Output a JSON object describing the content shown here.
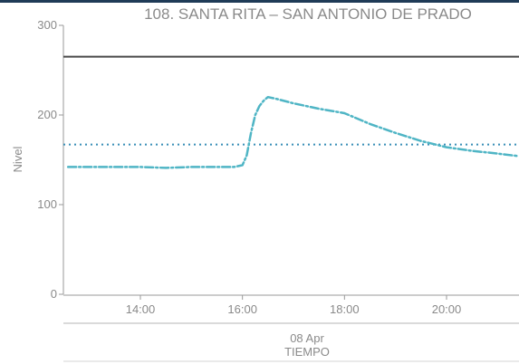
{
  "chart_data": {
    "type": "line",
    "title": "108. SANTA RITA – SAN ANTONIO DE PRADO",
    "ylabel": "Nivel",
    "xlabel": "TIEMPO",
    "date_label": "08 Apr",
    "ylim": [
      0,
      300
    ],
    "y_ticks": [
      0,
      100,
      200,
      300
    ],
    "xlim": [
      "12:35",
      "21:40"
    ],
    "x_ticks": [
      "14:00",
      "16:00",
      "18:00",
      "20:00"
    ],
    "threshold_lines": [
      {
        "value": 265,
        "style": "solid",
        "color": "#4a4a4a"
      },
      {
        "value": 167,
        "style": "dotted",
        "color": "#3a8fb7"
      }
    ],
    "series": [
      {
        "color": "#4fb5c5",
        "x": [
          "12:35",
          "13:00",
          "13:30",
          "14:00",
          "14:30",
          "15:00",
          "15:30",
          "15:50",
          "16:00",
          "16:05",
          "16:10",
          "16:15",
          "16:20",
          "16:25",
          "16:30",
          "16:40",
          "17:00",
          "17:30",
          "18:00",
          "18:30",
          "19:00",
          "19:30",
          "20:00",
          "20:30",
          "21:00",
          "21:40"
        ],
        "values": [
          142,
          142,
          142,
          142,
          141,
          142,
          142,
          142,
          144,
          155,
          180,
          200,
          210,
          216,
          220,
          218,
          213,
          207,
          202,
          190,
          180,
          171,
          164,
          160,
          157,
          154
        ]
      }
    ],
    "colors": {
      "accent": "#4fb5c5",
      "axis": "#9a9a9a",
      "text": "#8a8a8a",
      "header": "#1f3b57"
    }
  }
}
